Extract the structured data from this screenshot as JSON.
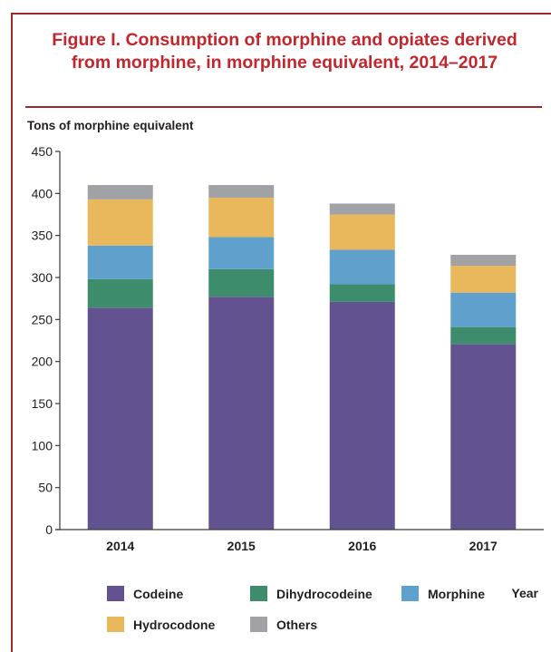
{
  "figure": {
    "title_line1": "Figure I.   Consumption of morphine and opiates derived",
    "title_line2": "from morphine, in morphine equivalent, 2014–2017"
  },
  "colors": {
    "Codeine": "#625390",
    "Dihydrocodeine": "#3d8c6b",
    "Morphine": "#5fa1cc",
    "Hydrocodone": "#eab85c",
    "Others": "#a1a2a6",
    "frame": "#9b2a2a",
    "title": "#c1272d"
  },
  "chart_data": {
    "type": "bar",
    "stacked": true,
    "ylabel": "Tons of morphine equivalent",
    "xlabel": "Year",
    "ylim": [
      0,
      450
    ],
    "yticks": [
      0,
      50,
      100,
      150,
      200,
      250,
      300,
      350,
      400,
      450
    ],
    "categories": [
      "2014",
      "2015",
      "2016",
      "2017"
    ],
    "series": [
      {
        "name": "Codeine",
        "values": [
          264,
          277,
          271,
          221
        ]
      },
      {
        "name": "Dihydrocodeine",
        "values": [
          34,
          33,
          21,
          20
        ]
      },
      {
        "name": "Morphine",
        "values": [
          40,
          38,
          41,
          41
        ]
      },
      {
        "name": "Hydrocodone",
        "values": [
          55,
          47,
          42,
          32
        ]
      },
      {
        "name": "Others",
        "values": [
          17,
          15,
          13,
          13
        ]
      }
    ],
    "grid": false,
    "legend_position": "bottom",
    "legend_rows": [
      [
        "Codeine",
        "Dihydrocodeine",
        "Morphine"
      ],
      [
        "Hydrocodone",
        "Others"
      ]
    ]
  }
}
